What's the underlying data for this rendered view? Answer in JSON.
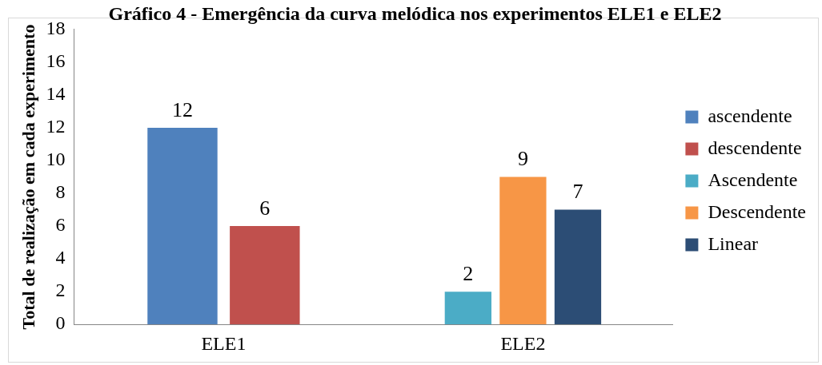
{
  "chart_data": {
    "type": "bar",
    "title": "Gráfico 4 - Emergência da curva melódica nos experimentos ELE1 e ELE2",
    "ylabel": "Total de realização em cada experimento",
    "categories": [
      "ELE1",
      "ELE2"
    ],
    "series": [
      {
        "name": "ascendente",
        "color": "#4f81bd",
        "values": [
          12,
          null
        ]
      },
      {
        "name": "descendente",
        "color": "#c0504d",
        "values": [
          6,
          null
        ]
      },
      {
        "name": "Ascendente",
        "color": "#4bacc6",
        "values": [
          null,
          2
        ]
      },
      {
        "name": "Descendente",
        "color": "#f79646",
        "values": [
          null,
          9
        ]
      },
      {
        "name": "Linear",
        "color": "#2c4d75",
        "values": [
          null,
          7
        ]
      }
    ],
    "ylim": [
      0,
      18
    ],
    "yticks": [
      0,
      2,
      4,
      6,
      8,
      10,
      12,
      14,
      16,
      18
    ],
    "grid": false,
    "legend": "right",
    "data_labels": true
  }
}
